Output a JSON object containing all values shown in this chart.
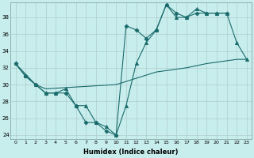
{
  "xlabel": "Humidex (Indice chaleur)",
  "background_color": "#c8eded",
  "grid_color": "#b0cccc",
  "line_color": "#1a6b6b",
  "xlim": [
    -0.5,
    23.5
  ],
  "ylim": [
    23.5,
    39.8
  ],
  "yticks": [
    24,
    26,
    28,
    30,
    32,
    34,
    36,
    38
  ],
  "xticks": [
    0,
    1,
    2,
    3,
    4,
    5,
    6,
    7,
    8,
    9,
    10,
    11,
    12,
    13,
    14,
    15,
    16,
    17,
    18,
    19,
    20,
    21,
    22,
    23
  ],
  "line1_x": [
    0,
    1,
    2,
    3,
    4,
    5,
    6,
    7,
    8,
    9,
    10,
    11,
    12,
    13,
    14,
    15,
    16,
    17,
    18,
    19,
    20,
    21,
    22,
    23
  ],
  "line1_y": [
    32.5,
    31.0,
    30.0,
    29.0,
    29.0,
    29.5,
    27.5,
    27.5,
    25.5,
    25.0,
    24.0,
    27.5,
    32.5,
    35.0,
    36.5,
    39.5,
    38.0,
    38.0,
    39.0,
    38.5,
    38.5,
    38.5,
    35.0,
    33.0
  ],
  "line2_x": [
    0,
    1,
    2,
    3,
    4,
    5,
    6,
    7,
    8,
    9,
    10,
    11,
    12,
    13,
    14,
    15,
    16,
    17,
    18,
    19,
    20,
    21
  ],
  "line2_y": [
    32.5,
    31.0,
    30.0,
    29.0,
    29.0,
    29.0,
    27.5,
    25.5,
    25.5,
    24.5,
    24.0,
    37.0,
    36.5,
    35.5,
    36.5,
    39.5,
    38.5,
    38.0,
    38.5,
    38.5,
    38.5,
    38.5
  ],
  "line3_x": [
    0,
    2,
    3,
    10,
    14,
    17,
    19,
    22,
    23
  ],
  "line3_y": [
    32.5,
    30.0,
    29.5,
    30.0,
    31.5,
    32.0,
    32.5,
    33.0,
    33.0
  ]
}
